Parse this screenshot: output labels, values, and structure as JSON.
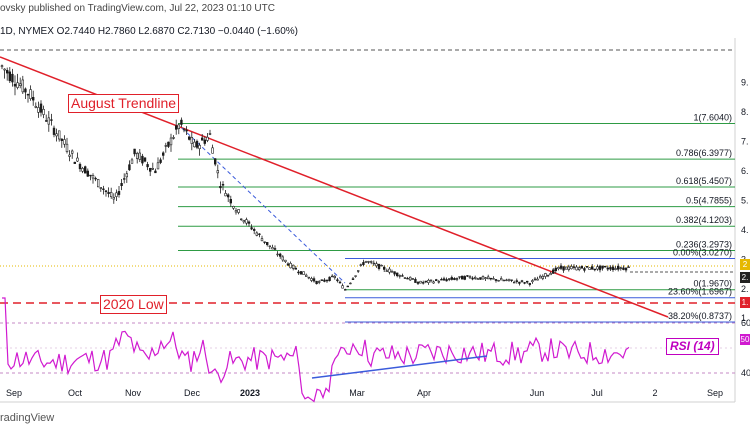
{
  "header": {
    "published": "ovsky published on TradingView.com, Jul 22, 2023 01:10 UTC",
    "symbol_line": "1D, NYMEX  O2.7440  H2.7860  L2.6870  C2.7130  −0.0440 (−1.60%)"
  },
  "footer": {
    "brand": "radingView"
  },
  "colors": {
    "trendline": "#e0202a",
    "fib": "#2e9b44",
    "rsi": "#d01ad0",
    "blue": "#3b5bdb",
    "candle": "#1b1b1b"
  },
  "chart_data": {
    "type": "candlestick",
    "instrument": "NYMEX natural gas, daily",
    "x_ticks": [
      "Sep",
      "Oct",
      "Nov",
      "Dec",
      "2023",
      "Mar",
      "Apr",
      "Jun",
      "Jul",
      "2",
      "Sep"
    ],
    "y_ticks": [
      "9.",
      "8.",
      "7.",
      "6.",
      "5.",
      "4.",
      "3.",
      "2.",
      "1."
    ],
    "price_path": [
      {
        "x": "Aug 2022",
        "y": 9.6
      },
      {
        "x": "Sep",
        "y": 8.6
      },
      {
        "x": "Oct",
        "y": 6.4
      },
      {
        "x": "Oct",
        "y": 5.0
      },
      {
        "x": "Nov",
        "y": 6.6
      },
      {
        "x": "Nov",
        "y": 6.0
      },
      {
        "x": "Dec",
        "y": 7.6
      },
      {
        "x": "Dec",
        "y": 6.8
      },
      {
        "x": "Dec",
        "y": 7.2
      },
      {
        "x": "Dec",
        "y": 5.6
      },
      {
        "x": "Dec",
        "y": 4.5
      },
      {
        "x": "2023",
        "y": 3.6
      },
      {
        "x": "2023",
        "y": 2.8
      },
      {
        "x": "Feb",
        "y": 2.2
      },
      {
        "x": "Feb",
        "y": 2.4
      },
      {
        "x": "Mar",
        "y": 1.97
      },
      {
        "x": "Mar",
        "y": 2.95
      },
      {
        "x": "Apr",
        "y": 2.2
      },
      {
        "x": "May",
        "y": 2.4
      },
      {
        "x": "Jun",
        "y": 2.2
      },
      {
        "x": "Jun",
        "y": 2.7
      },
      {
        "x": "Jul",
        "y": 2.7
      },
      {
        "x": "Jul",
        "y": 2.71
      }
    ],
    "fib_levels": [
      {
        "ratio": "1",
        "price": "7.6040",
        "label": "1(7.6040)"
      },
      {
        "ratio": "0.786",
        "price": "6.3977",
        "label": "0.786(6.3977)"
      },
      {
        "ratio": "0.618",
        "price": "5.4507",
        "label": "0.618(5.4507)"
      },
      {
        "ratio": "0.5",
        "price": "4.7855",
        "label": "0.5(4.7855)"
      },
      {
        "ratio": "0.382",
        "price": "4.1203",
        "label": "0.382(4.1203)"
      },
      {
        "ratio": "0.236",
        "price": "3.2973",
        "label": "0.236(3.2973)"
      },
      {
        "ratio": "0",
        "price": "1.9670",
        "label": "0(1.9670)"
      }
    ],
    "blue_levels": [
      {
        "ratio": "0.00%",
        "price": "3.0270",
        "label": "0.00%(3.0270)"
      },
      {
        "ratio": "23.60%",
        "price": "1.6967",
        "label": "23.60%(1.6967)"
      },
      {
        "ratio": "38.20%",
        "price": "0.8737",
        "label": "38.20%(0.8737)"
      }
    ],
    "annotations": {
      "trendline": "August Trendline",
      "low_2020": "2020 Low",
      "rsi": "RSI (14)"
    },
    "rsi": {
      "y_ticks": [
        "60",
        "40"
      ],
      "last_badge": "50"
    },
    "right_badges": [
      "2",
      "2.",
      "1."
    ]
  }
}
